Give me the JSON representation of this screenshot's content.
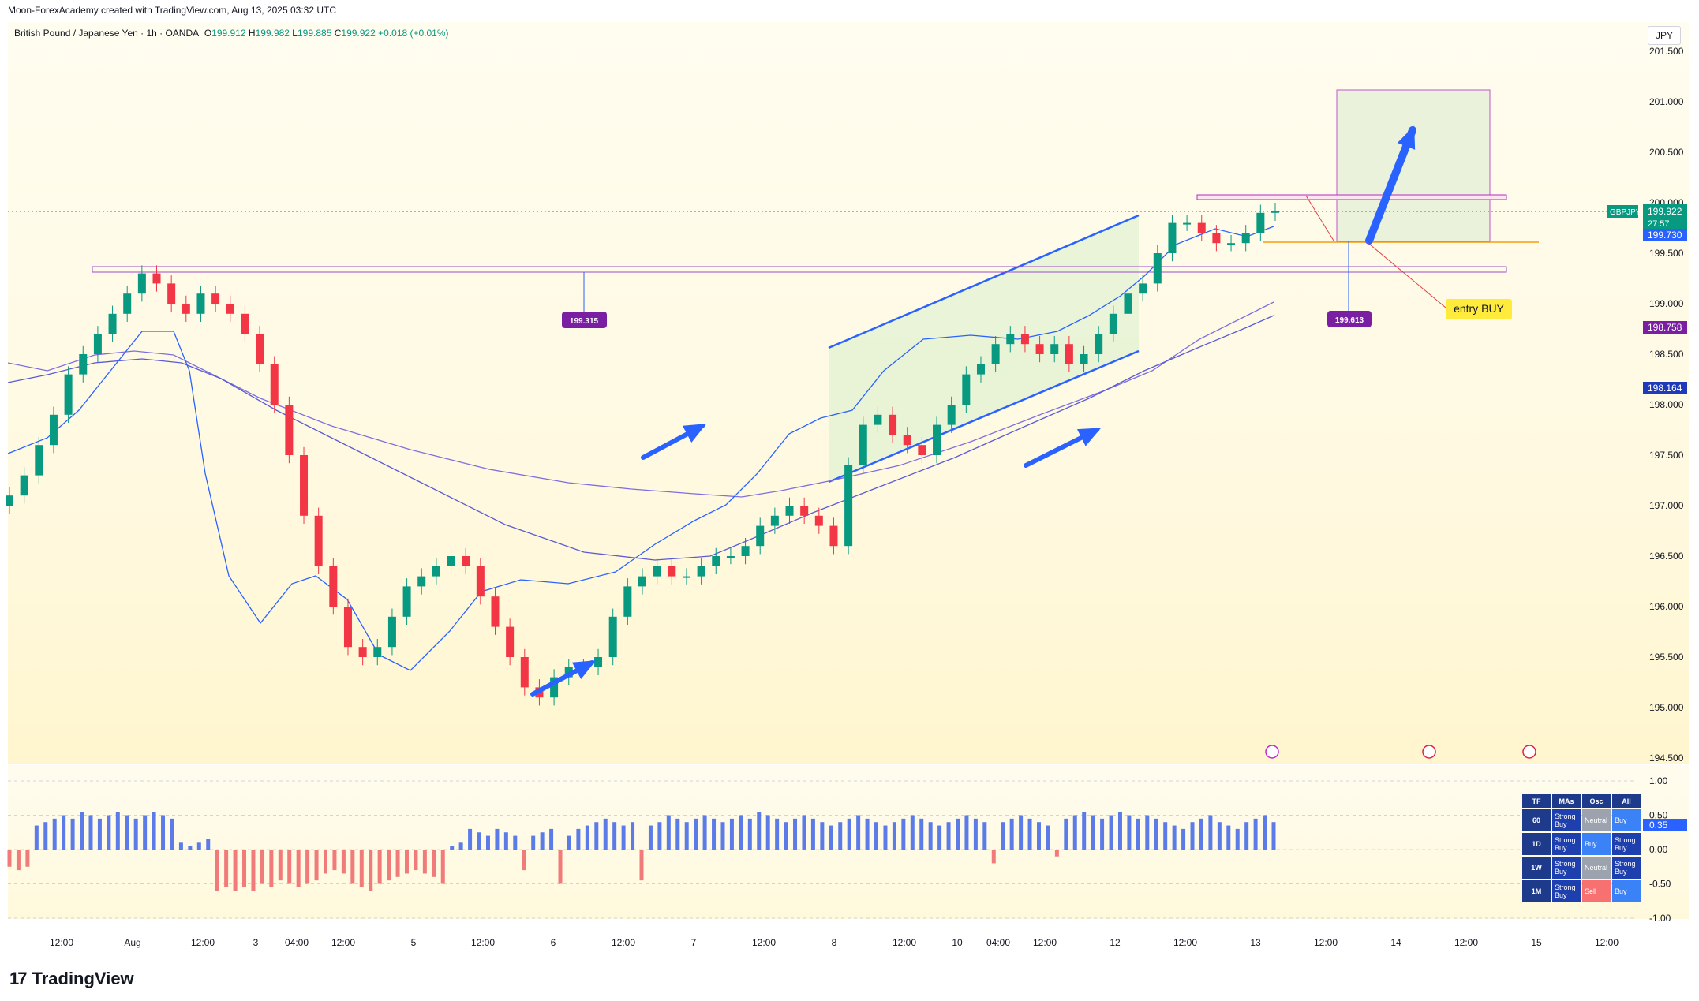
{
  "header": {
    "credit": "Moon-ForexAcademy created with TradingView.com, Aug 13, 2025 03:32 UTC",
    "symbol_desc": "British Pound / Japanese Yen · 1h · OANDA",
    "ohlc": {
      "o_label": "O",
      "o": "199.912",
      "h_label": "H",
      "h": "199.982",
      "l_label": "L",
      "l": "199.885",
      "c_label": "C",
      "c": "199.922",
      "chg": "+0.018 (+0.01%)"
    }
  },
  "currency": "JPY",
  "brand": "TradingView",
  "annotations": {
    "level_left": "199.315",
    "level_right": "199.613",
    "entry": "entry BUY"
  },
  "price_tags": [
    {
      "label": "GBPJPY",
      "value": "199.922",
      "sub": "27:57",
      "color": "#089981"
    },
    {
      "value": "199.730",
      "color": "#2962ff"
    },
    {
      "value": "198.758",
      "color": "#7b1fa2"
    },
    {
      "value": "198.164",
      "color": "#1e3ab8"
    }
  ],
  "ta_table": {
    "headers": [
      "TF",
      "MAs",
      "Osc",
      "All"
    ],
    "rows": [
      {
        "tf": "60",
        "mas": "Strong Buy",
        "osc": "Neutral",
        "all": "Buy"
      },
      {
        "tf": "1D",
        "mas": "Strong Buy",
        "osc": "Buy",
        "all": "Strong Buy"
      },
      {
        "tf": "1W",
        "mas": "Strong Buy",
        "osc": "Neutral",
        "all": "Strong Buy"
      },
      {
        "tf": "1M",
        "mas": "Strong Buy",
        "osc": "Sell",
        "all": "Buy"
      }
    ]
  },
  "indicator_value": "0.35",
  "chart_data": [
    {
      "type": "candlestick",
      "symbol": "GBPJPY",
      "timeframe": "1h",
      "y_axis": {
        "ticks": [
          "201.500",
          "201.000",
          "200.500",
          "200.000",
          "199.500",
          "199.000",
          "198.500",
          "198.000",
          "197.500",
          "197.000",
          "196.500",
          "196.000",
          "195.500",
          "195.000",
          "194.500"
        ],
        "range": [
          194.35,
          201.7
        ]
      },
      "x_axis": {
        "ticks": [
          "12:00",
          "Aug",
          "12:00",
          "3",
          "04:00",
          "12:00",
          "5",
          "12:00",
          "6",
          "12:00",
          "7",
          "12:00",
          "8",
          "12:00",
          "10",
          "04:00",
          "12:00",
          "12",
          "12:00",
          "13",
          "12:00",
          "14",
          "12:00",
          "15",
          "12:00"
        ]
      },
      "close_path": [
        197.1,
        197.3,
        197.6,
        197.9,
        198.3,
        198.5,
        198.7,
        198.9,
        199.1,
        199.3,
        199.2,
        199.0,
        198.9,
        199.1,
        199.0,
        198.9,
        198.7,
        198.4,
        198.0,
        197.5,
        196.9,
        196.4,
        196.0,
        195.6,
        195.5,
        195.6,
        195.9,
        196.2,
        196.3,
        196.4,
        196.5,
        196.4,
        196.1,
        195.8,
        195.5,
        195.2,
        195.1,
        195.3,
        195.4,
        195.4,
        195.5,
        195.9,
        196.2,
        196.3,
        196.4,
        196.3,
        196.3,
        196.4,
        196.5,
        196.5,
        196.6,
        196.8,
        196.9,
        197.0,
        196.9,
        196.8,
        196.6,
        197.4,
        197.8,
        197.9,
        197.7,
        197.6,
        197.5,
        197.8,
        198.0,
        198.3,
        198.4,
        198.6,
        198.7,
        198.6,
        198.5,
        198.6,
        198.4,
        198.5,
        198.7,
        198.9,
        199.1,
        199.2,
        199.5,
        199.8,
        199.8,
        199.7,
        199.6,
        199.6,
        199.7,
        199.9,
        199.92
      ],
      "moving_averages": [
        {
          "type": "short",
          "color": "#2962ff"
        },
        {
          "type": "medium",
          "color": "#5b5bd6"
        },
        {
          "type": "long",
          "color": "#7e6fe0"
        }
      ],
      "levels": [
        {
          "price": 199.315,
          "label": "199.315"
        },
        {
          "price": 199.613,
          "label": "199.613"
        },
        {
          "price": 199.73,
          "label": "199.730"
        }
      ]
    },
    {
      "type": "bar",
      "name": "indicator",
      "y_axis": {
        "ticks": [
          "1.00",
          "0.50",
          "0.00",
          "-0.50",
          "-1.00"
        ],
        "range": [
          -1.0,
          1.0
        ]
      },
      "values": [
        -0.25,
        -0.3,
        -0.25,
        0.35,
        0.4,
        0.45,
        0.5,
        0.45,
        0.55,
        0.5,
        0.45,
        0.5,
        0.55,
        0.5,
        0.45,
        0.5,
        0.55,
        0.5,
        0.45,
        0.1,
        0.05,
        0.1,
        0.15,
        -0.6,
        -0.55,
        -0.6,
        -0.55,
        -0.6,
        -0.5,
        -0.55,
        -0.45,
        -0.5,
        -0.55,
        -0.5,
        -0.45,
        -0.35,
        -0.3,
        -0.35,
        -0.5,
        -0.55,
        -0.6,
        -0.5,
        -0.45,
        -0.4,
        -0.35,
        -0.3,
        -0.35,
        -0.4,
        -0.5,
        0.05,
        0.1,
        0.3,
        0.25,
        0.2,
        0.3,
        0.25,
        0.2,
        -0.3,
        0.2,
        0.25,
        0.3,
        -0.5,
        0.2,
        0.3,
        0.35,
        0.4,
        0.45,
        0.4,
        0.35,
        0.4,
        -0.45,
        0.35,
        0.4,
        0.5,
        0.45,
        0.4,
        0.45,
        0.5,
        0.45,
        0.4,
        0.45,
        0.5,
        0.45,
        0.55,
        0.5,
        0.45,
        0.4,
        0.45,
        0.5,
        0.45,
        0.4,
        0.35,
        0.4,
        0.45,
        0.5,
        0.45,
        0.4,
        0.35,
        0.4,
        0.45,
        0.5,
        0.45,
        0.4,
        0.35,
        0.4,
        0.45,
        0.5,
        0.45,
        0.4,
        -0.2,
        0.4,
        0.45,
        0.5,
        0.45,
        0.4,
        0.35,
        -0.1,
        0.45,
        0.5,
        0.55,
        0.5,
        0.45,
        0.5,
        0.55,
        0.5,
        0.45,
        0.5,
        0.45,
        0.4,
        0.35,
        0.3,
        0.4,
        0.45,
        0.5,
        0.4,
        0.35,
        0.3,
        0.4,
        0.45,
        0.5,
        0.4
      ]
    }
  ]
}
